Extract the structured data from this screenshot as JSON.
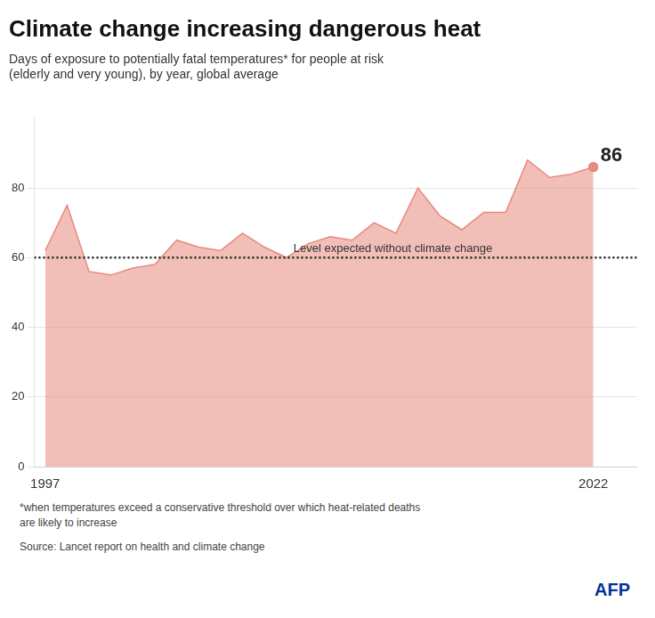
{
  "chart_data": {
    "type": "area",
    "title": "Climate change increasing dangerous heat",
    "subtitle": "Days of exposure to potentially fatal temperatures* for people at risk\n(elderly and very young), by year, global average",
    "footnote": "*when temperatures exceed a conservative threshold over which heat-related deaths\nare likely to increase",
    "source": "Source: Lancet report on health and climate change",
    "credit": "AFP",
    "x": [
      1997,
      1998,
      1999,
      2000,
      2001,
      2002,
      2003,
      2004,
      2005,
      2006,
      2007,
      2008,
      2009,
      2010,
      2011,
      2012,
      2013,
      2014,
      2015,
      2016,
      2017,
      2018,
      2019,
      2020,
      2021,
      2022
    ],
    "values": [
      62,
      75,
      56,
      55,
      57,
      58,
      65,
      63,
      62,
      67,
      63,
      60,
      64,
      66,
      65,
      70,
      67,
      80,
      72,
      68,
      73,
      73,
      88,
      83,
      84,
      86
    ],
    "color": "#e8897d",
    "xlim": [
      1996.5,
      2024
    ],
    "xticks": [
      1997,
      2022
    ],
    "ylim": [
      0,
      100
    ],
    "yticks": [
      0,
      20,
      40,
      60,
      80
    ],
    "grid": true,
    "annotations": [
      {
        "kind": "hline",
        "y": 60,
        "text": "Level expected without climate change"
      },
      {
        "kind": "point",
        "x": 2022,
        "y": 86,
        "text": "86"
      }
    ]
  }
}
